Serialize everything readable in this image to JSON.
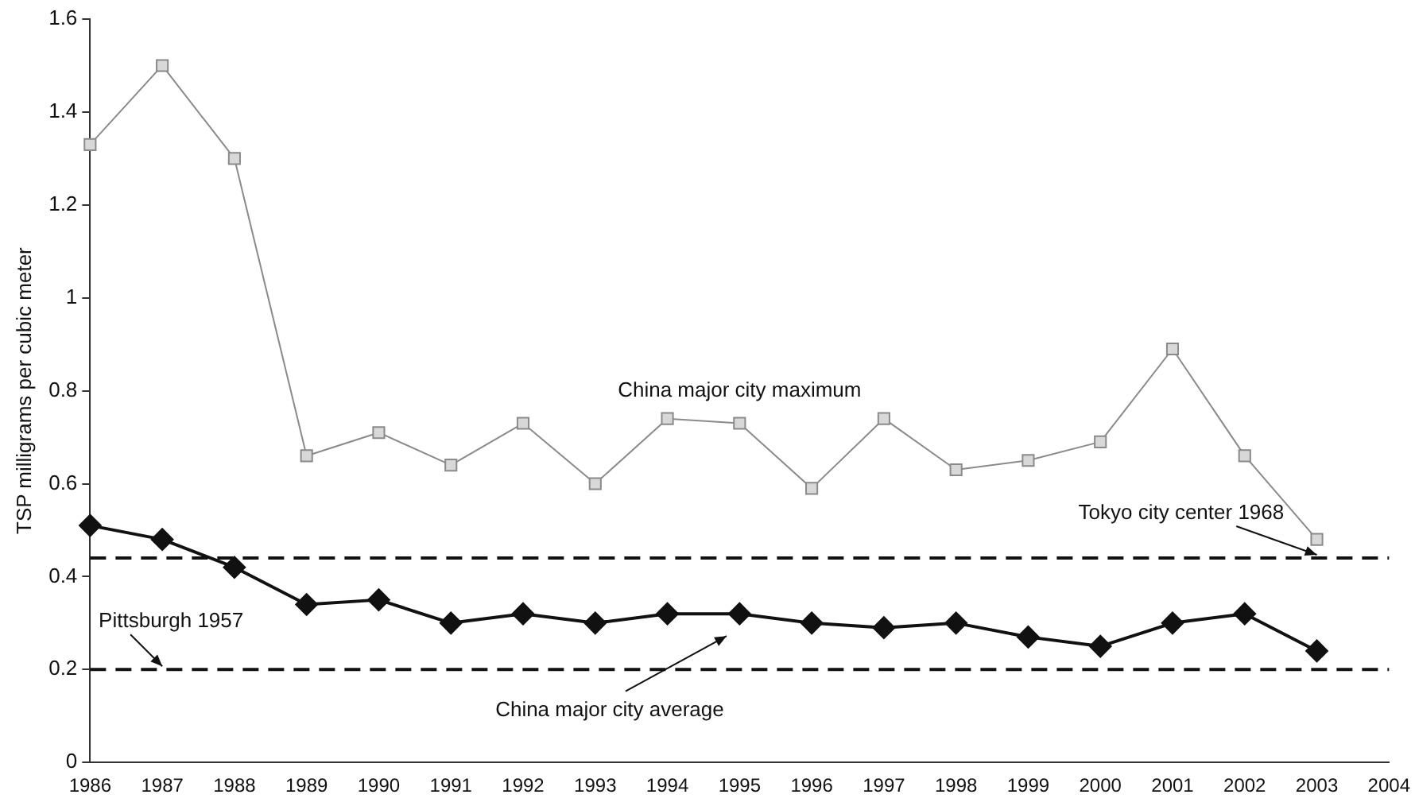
{
  "chart_data": {
    "type": "line",
    "ylabel": "TSP milligrams per cubic meter",
    "categories": [
      "1986",
      "1987",
      "1988",
      "1989",
      "1990",
      "1991",
      "1992",
      "1993",
      "1994",
      "1995",
      "1996",
      "1997",
      "1998",
      "1999",
      "2000",
      "2001",
      "2002",
      "2003",
      "2004"
    ],
    "series": [
      {
        "color": "#8a8a8a",
        "marker": "square",
        "values": [
          1.33,
          1.5,
          1.3,
          0.66,
          0.71,
          0.64,
          0.73,
          0.6,
          0.74,
          0.73,
          0.59,
          0.74,
          0.63,
          0.65,
          0.69,
          0.89,
          0.66,
          0.48,
          null
        ]
      },
      {
        "color": "#111111",
        "marker": "diamond",
        "values": [
          0.51,
          0.48,
          0.42,
          0.34,
          0.35,
          0.3,
          0.32,
          0.3,
          0.32,
          0.32,
          0.3,
          0.29,
          0.3,
          0.27,
          0.25,
          0.3,
          0.32,
          0.24,
          null
        ]
      }
    ],
    "ylim": [
      0,
      1.6
    ],
    "yticks": [
      0,
      0.2,
      0.4,
      0.6,
      0.8,
      1,
      1.2,
      1.4,
      1.6
    ],
    "grid": false,
    "legend": false,
    "ref_lines": [
      {
        "axis": "y",
        "value": 0.44,
        "label": "Tokyo city center 1968",
        "color": "#111111",
        "line_style": "dashed"
      },
      {
        "axis": "y",
        "value": 0.2,
        "label": "Pittsburgh 1957",
        "color": "#111111",
        "line_style": "dashed"
      }
    ],
    "annotations": [
      "China major city maximum",
      "China major city average"
    ]
  }
}
